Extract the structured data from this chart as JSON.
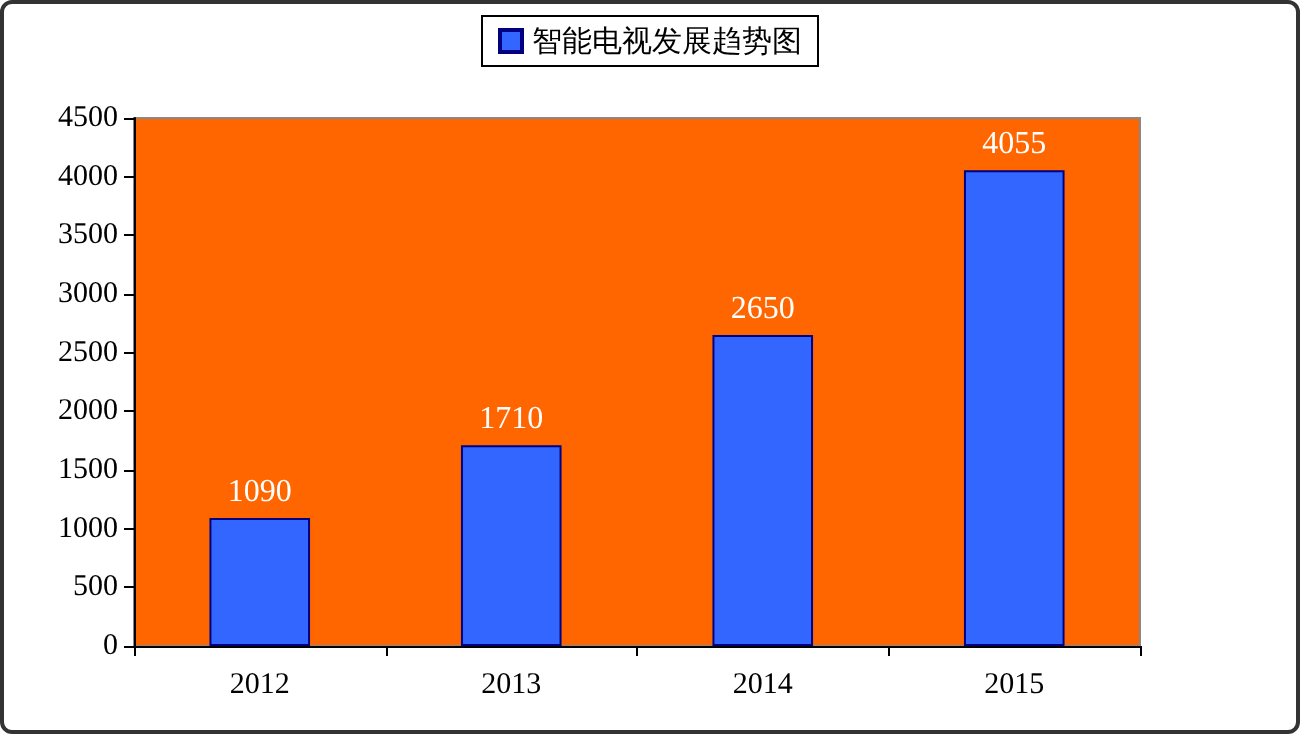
{
  "chart_data": {
    "type": "bar",
    "categories": [
      "2012",
      "2013",
      "2014",
      "2015"
    ],
    "series": [
      {
        "name": "智能电视发展趋势图",
        "color": "#3366ff",
        "values": [
          1090,
          1710,
          2650,
          4055
        ]
      }
    ],
    "ylim": [
      0,
      4500
    ],
    "yticks": [
      0,
      500,
      1000,
      1500,
      2000,
      2500,
      3000,
      3500,
      4000,
      4500
    ],
    "grid": false,
    "legend": "top",
    "data_labels": true
  }
}
